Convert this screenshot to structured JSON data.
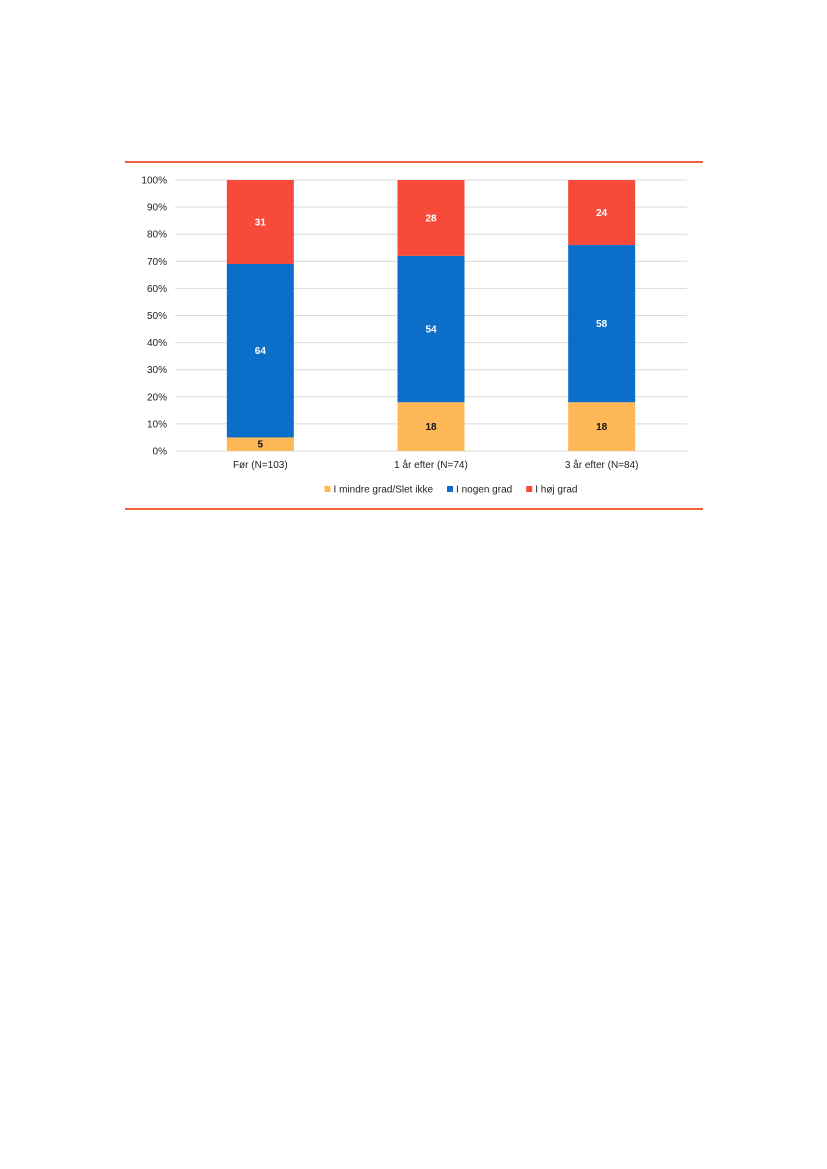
{
  "chart_data": {
    "type": "bar",
    "stacked": true,
    "title": "",
    "xlabel": "",
    "ylabel": "",
    "ylim": [
      0,
      100
    ],
    "yticks": [
      "0%",
      "10%",
      "20%",
      "30%",
      "40%",
      "50%",
      "60%",
      "70%",
      "80%",
      "90%",
      "100%"
    ],
    "categories": [
      "Før (N=103)",
      "1 år efter (N=74)",
      "3 år efter (N=84)"
    ],
    "series": [
      {
        "name": "I mindre grad/Slet ikke",
        "values": [
          5,
          18,
          18
        ],
        "color": "#ffb857",
        "label_color": "#111111"
      },
      {
        "name": "I nogen grad",
        "values": [
          64,
          54,
          58
        ],
        "color": "#0b6fc9",
        "label_color": "#ffffff"
      },
      {
        "name": "I høj grad",
        "values": [
          31,
          28,
          24
        ],
        "color": "#f64a3a",
        "label_color": "#ffffff"
      }
    ],
    "grid": true,
    "legend_position": "bottom"
  }
}
